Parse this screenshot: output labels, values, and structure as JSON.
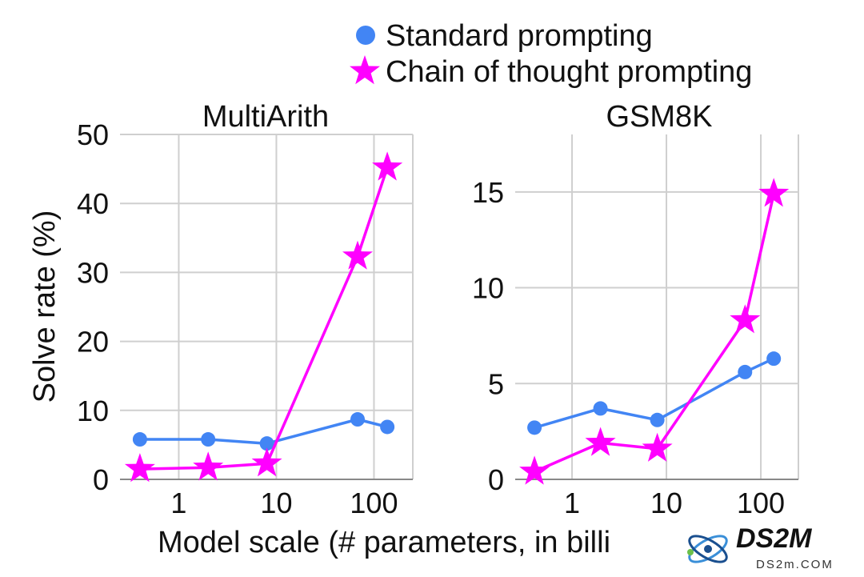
{
  "legend": {
    "entries": [
      {
        "label": "Standard prompting",
        "marker": "circle",
        "color": "#4285f4"
      },
      {
        "label": "Chain of thought prompting",
        "marker": "star",
        "color": "#ff00ff"
      }
    ]
  },
  "xlabel": "Model scale (# parameters, in billi",
  "ylabel": "Solve rate (%)",
  "watermark": {
    "main": "DS2M",
    "sub": "DS2m.COM",
    "icon": "atom-icon"
  },
  "chart_data": [
    {
      "type": "line",
      "title": "MultiArith",
      "xscale": "log",
      "xlim": [
        0.25,
        250
      ],
      "ylim": [
        0,
        50
      ],
      "xticks": [
        1,
        10,
        100
      ],
      "xtick_labels": [
        "1",
        "10",
        "100"
      ],
      "yticks": [
        0,
        10,
        20,
        30,
        40,
        50
      ],
      "ytick_labels": [
        "0",
        "10",
        "20",
        "30",
        "40",
        "50"
      ],
      "grid": true,
      "series": [
        {
          "name": "Standard prompting",
          "color": "#4285f4",
          "marker": "circle",
          "x": [
            0.4,
            2,
            8,
            68,
            137
          ],
          "y": [
            5.8,
            5.8,
            5.2,
            8.7,
            7.6
          ]
        },
        {
          "name": "Chain of thought prompting",
          "color": "#ff00ff",
          "marker": "star",
          "x": [
            0.4,
            2,
            8,
            68,
            137
          ],
          "y": [
            1.5,
            1.7,
            2.3,
            32.3,
            45.2
          ]
        }
      ]
    },
    {
      "type": "line",
      "title": "GSM8K",
      "xscale": "log",
      "xlim": [
        0.25,
        250
      ],
      "ylim": [
        0,
        18
      ],
      "xticks": [
        1,
        10,
        100
      ],
      "xtick_labels": [
        "1",
        "10",
        "100"
      ],
      "yticks": [
        0,
        5,
        10,
        15
      ],
      "ytick_labels": [
        "0",
        "5",
        "10",
        "15"
      ],
      "grid": true,
      "series": [
        {
          "name": "Standard prompting",
          "color": "#4285f4",
          "marker": "circle",
          "x": [
            0.4,
            2,
            8,
            68,
            137
          ],
          "y": [
            2.7,
            3.7,
            3.1,
            5.6,
            6.3
          ]
        },
        {
          "name": "Chain of thought prompting",
          "color": "#ff00ff",
          "marker": "star",
          "x": [
            0.4,
            2,
            8,
            68,
            137
          ],
          "y": [
            0.4,
            1.9,
            1.6,
            8.3,
            14.9
          ]
        }
      ]
    }
  ]
}
